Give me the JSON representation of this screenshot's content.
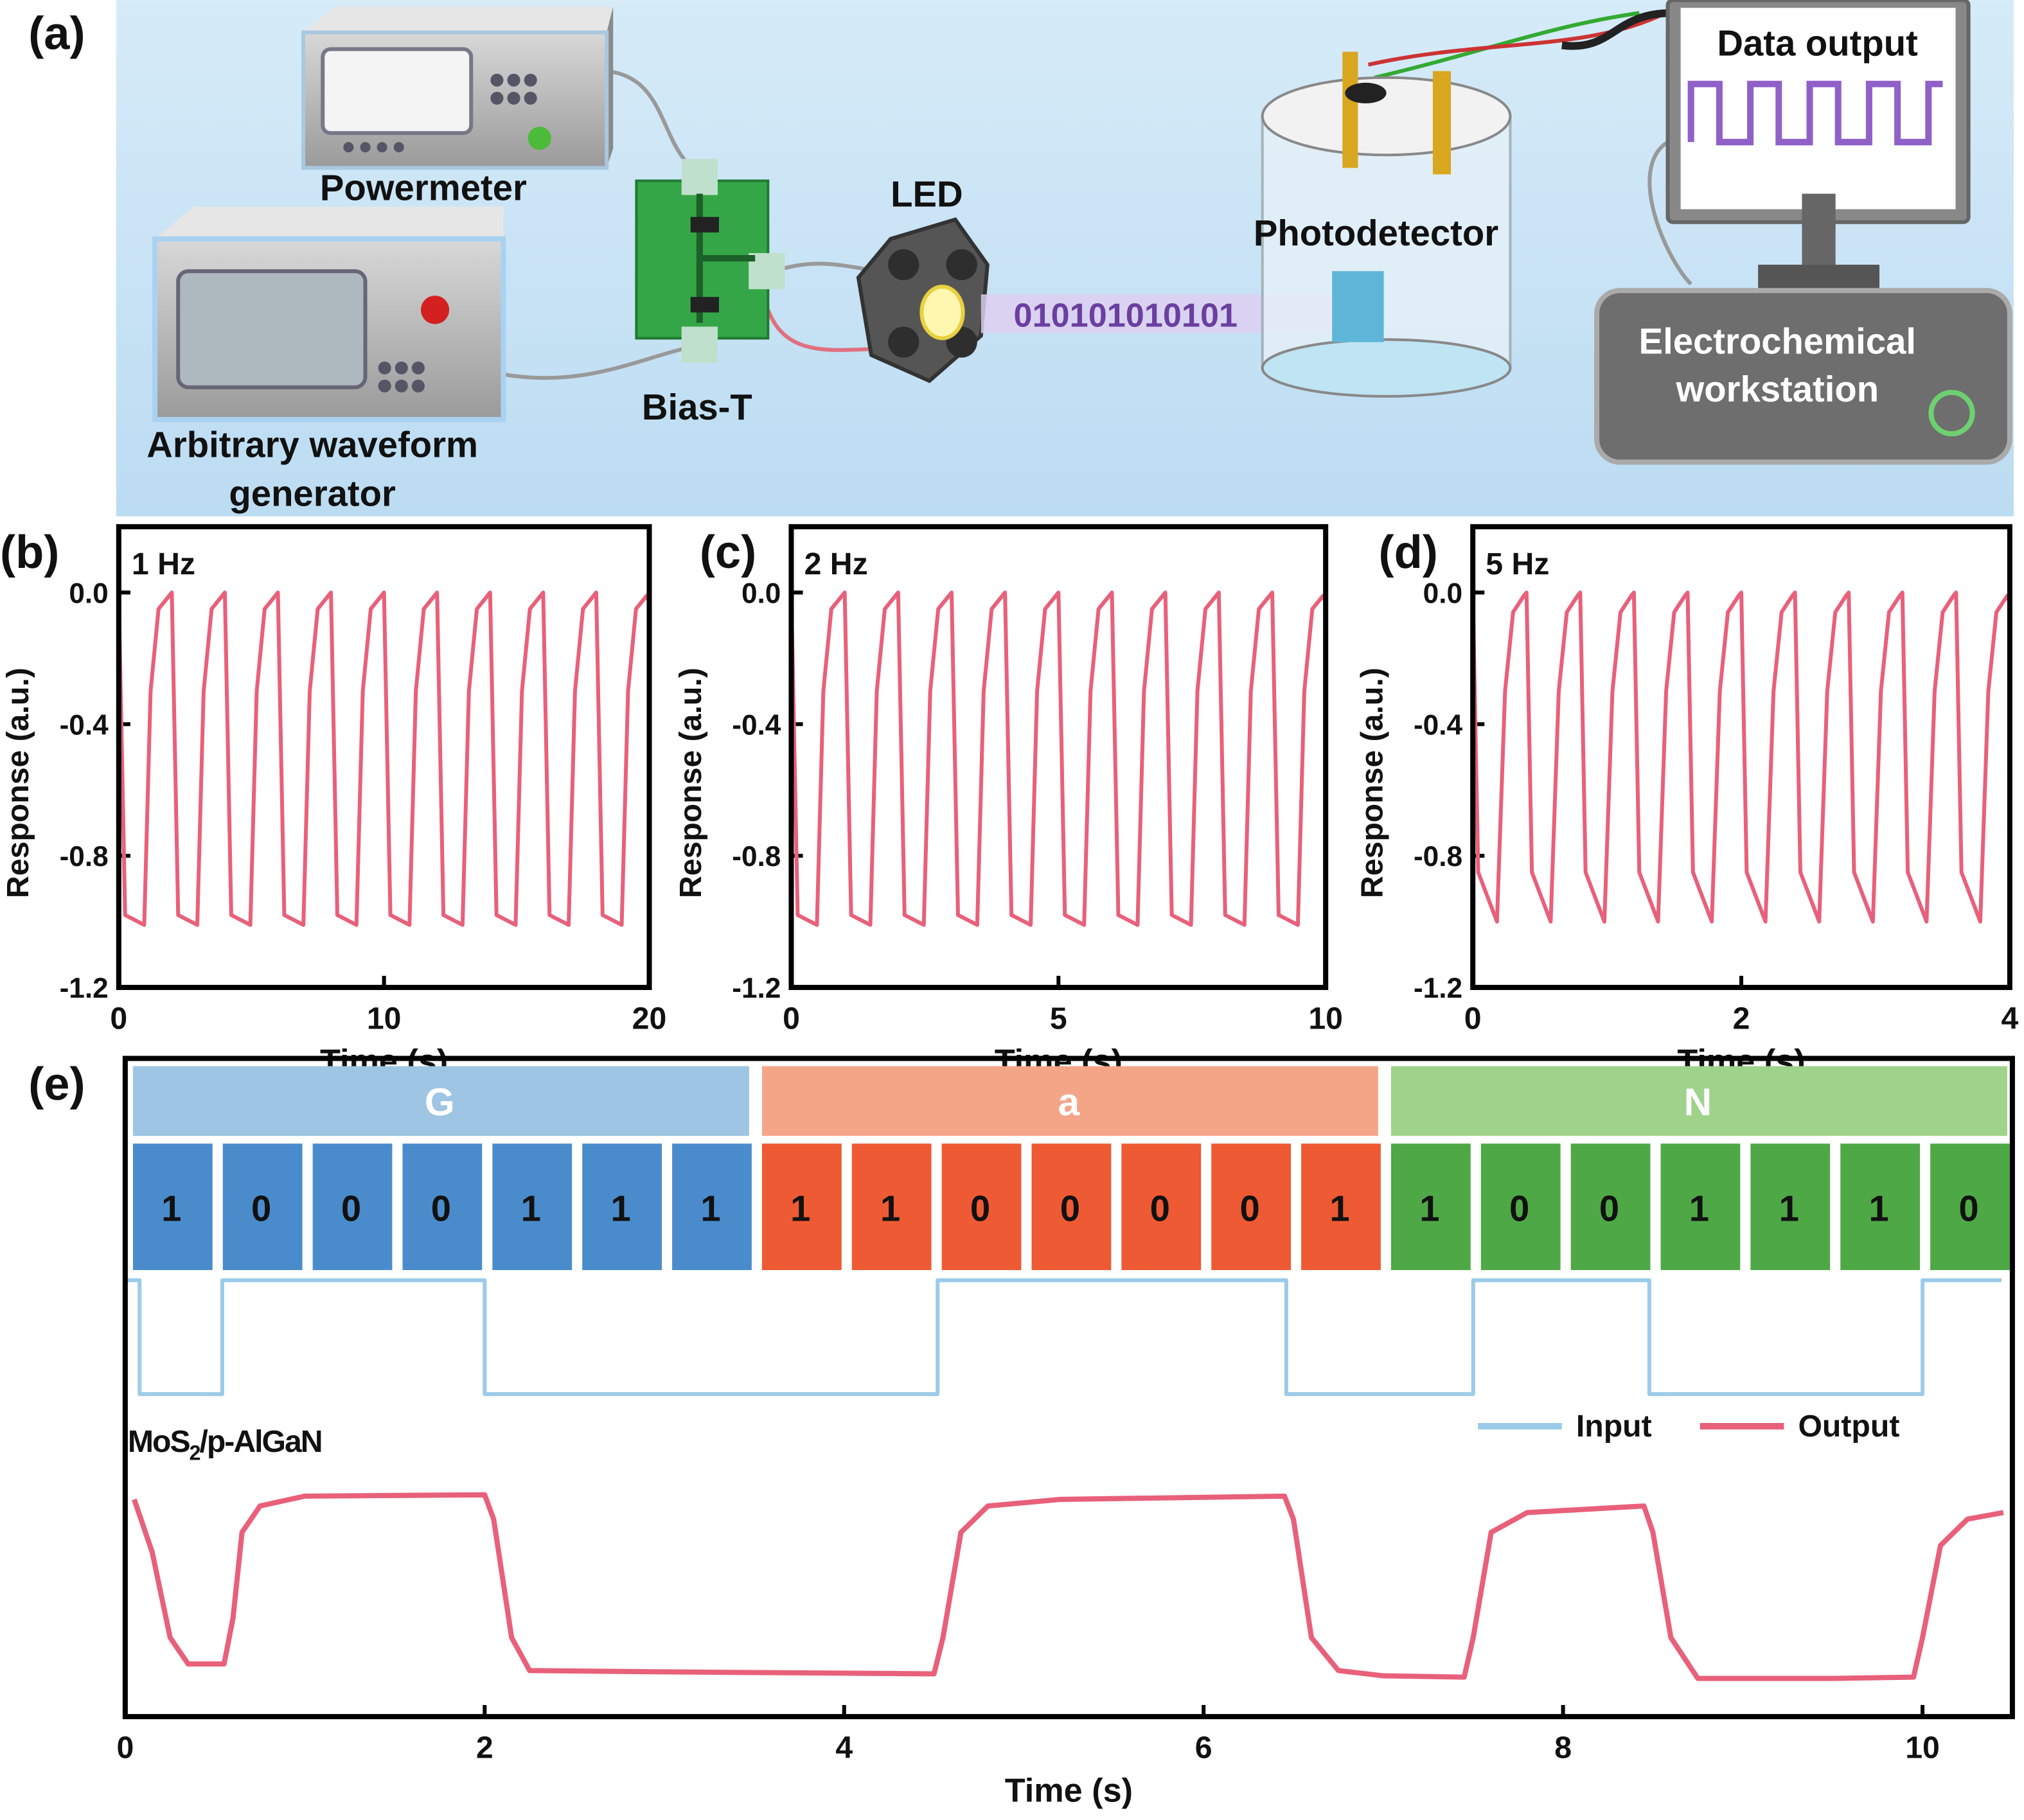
{
  "panel_labels": [
    "(a)",
    "(b)",
    "(c)",
    "(d)",
    "(e)"
  ],
  "diagram": {
    "powermeter": "Powermeter",
    "waveform_generator": [
      "Arbitrary waveform",
      "generator"
    ],
    "bias_t": "Bias-T",
    "led": "LED",
    "signal": "010101010101",
    "photodetector": "Photodetector",
    "data_output": "Data output",
    "workstation": [
      "Electrochemical",
      "workstation"
    ]
  },
  "chart_data": [
    {
      "type": "line",
      "annotation": "1 Hz",
      "xlabel": "Time (s)",
      "ylabel": "Response (a.u.)",
      "color": "#e8607a",
      "x": [
        0,
        0.24,
        0.96,
        1.2,
        1.5,
        1.9,
        2,
        2.24,
        2.96,
        3.2,
        3.5,
        3.9,
        4,
        4.24,
        4.96,
        5.2,
        5.5,
        5.9,
        6,
        6.24,
        6.96,
        7.2,
        7.5,
        7.9,
        8,
        8.24,
        8.96,
        9.2,
        9.5,
        9.9,
        10,
        10.24,
        10.96,
        11.2,
        11.5,
        11.9,
        12,
        12.24,
        12.96,
        13.2,
        13.5,
        13.9,
        14,
        14.24,
        14.96,
        15.2,
        15.5,
        15.9,
        16,
        16.24,
        16.96,
        17.2,
        17.5,
        17.9,
        18,
        18.24,
        18.96,
        19.2,
        19.5,
        19.9,
        20
      ],
      "values": [
        0,
        -0.98,
        -1.01,
        -0.3,
        -0.05,
        -0.01,
        0,
        -0.98,
        -1.01,
        -0.3,
        -0.05,
        -0.01,
        0,
        -0.98,
        -1.01,
        -0.3,
        -0.05,
        -0.01,
        0,
        -0.98,
        -1.01,
        -0.3,
        -0.05,
        -0.01,
        0,
        -0.98,
        -1.01,
        -0.3,
        -0.05,
        -0.01,
        0,
        -0.98,
        -1.01,
        -0.3,
        -0.05,
        -0.01,
        0,
        -0.98,
        -1.01,
        -0.3,
        -0.05,
        -0.01,
        0,
        -0.98,
        -1.01,
        -0.3,
        -0.05,
        -0.01,
        0,
        -0.98,
        -1.01,
        -0.3,
        -0.05,
        -0.01,
        0,
        -0.98,
        -1.01,
        -0.3,
        -0.05,
        -0.01,
        -0.03
      ],
      "xlim": [
        0,
        20
      ],
      "ylim": [
        -1.2,
        0.2
      ],
      "xticks": [
        0,
        10,
        20
      ],
      "yticks": [
        {
          "value": 0,
          "label": "0.0"
        },
        -0.4,
        -0.8,
        -1.2
      ]
    },
    {
      "type": "line",
      "annotation": "2 Hz",
      "xlabel": "Time (s)",
      "ylabel": "Response (a.u.)",
      "color": "#e8607a",
      "x": [
        0,
        0.12,
        0.48,
        0.6,
        0.75,
        0.95,
        1,
        1.12,
        1.48,
        1.6,
        1.75,
        1.95,
        2,
        2.12,
        2.48,
        2.6,
        2.75,
        2.95,
        3,
        3.12,
        3.48,
        3.6,
        3.75,
        3.95,
        4,
        4.12,
        4.48,
        4.6,
        4.75,
        4.95,
        5,
        5.12,
        5.48,
        5.6,
        5.75,
        5.95,
        6,
        6.12,
        6.48,
        6.6,
        6.75,
        6.95,
        7,
        7.12,
        7.48,
        7.6,
        7.75,
        7.95,
        8,
        8.12,
        8.48,
        8.6,
        8.75,
        8.95,
        9,
        9.12,
        9.48,
        9.6,
        9.75,
        9.95,
        10
      ],
      "values": [
        0,
        -0.98,
        -1.01,
        -0.3,
        -0.05,
        -0.01,
        0,
        -0.98,
        -1.01,
        -0.3,
        -0.05,
        -0.01,
        0,
        -0.98,
        -1.01,
        -0.3,
        -0.05,
        -0.01,
        0,
        -0.98,
        -1.01,
        -0.3,
        -0.05,
        -0.01,
        0,
        -0.98,
        -1.01,
        -0.3,
        -0.05,
        -0.01,
        0,
        -0.98,
        -1.01,
        -0.3,
        -0.05,
        -0.01,
        0,
        -0.98,
        -1.01,
        -0.3,
        -0.05,
        -0.01,
        0,
        -0.98,
        -1.01,
        -0.3,
        -0.05,
        -0.01,
        0,
        -0.98,
        -1.01,
        -0.3,
        -0.05,
        -0.01,
        0,
        -0.98,
        -1.01,
        -0.3,
        -0.05,
        -0.01,
        -0.03
      ],
      "xlim": [
        0,
        10
      ],
      "ylim": [
        -1.2,
        0.2
      ],
      "xticks": [
        0,
        5,
        10
      ],
      "yticks": [
        {
          "value": 0,
          "label": "0.0"
        },
        -0.4,
        -0.8,
        -1.2
      ]
    },
    {
      "type": "line",
      "annotation": "5 Hz",
      "xlabel": "Time (s)",
      "ylabel": "Response (a.u.)",
      "color": "#e8607a",
      "x": [
        0,
        0.04,
        0.18,
        0.24,
        0.3,
        0.38,
        0.4,
        0.44,
        0.58,
        0.64,
        0.7,
        0.78,
        0.8,
        0.84,
        0.98,
        1.04,
        1.1,
        1.18,
        1.2,
        1.24,
        1.38,
        1.44,
        1.5,
        1.58,
        1.6,
        1.64,
        1.78,
        1.84,
        1.9,
        1.98,
        2,
        2.04,
        2.18,
        2.24,
        2.3,
        2.38,
        2.4,
        2.44,
        2.58,
        2.64,
        2.7,
        2.78,
        2.8,
        2.84,
        2.98,
        3.04,
        3.1,
        3.18,
        3.2,
        3.24,
        3.38,
        3.44,
        3.5,
        3.58,
        3.6,
        3.64,
        3.78,
        3.84,
        3.9,
        3.98,
        4
      ],
      "values": [
        0,
        -0.85,
        -1.0,
        -0.3,
        -0.06,
        -0.01,
        0,
        -0.85,
        -1.0,
        -0.3,
        -0.06,
        -0.01,
        0,
        -0.85,
        -1.0,
        -0.3,
        -0.06,
        -0.01,
        0,
        -0.85,
        -1.0,
        -0.3,
        -0.06,
        -0.01,
        0,
        -0.85,
        -1.0,
        -0.3,
        -0.06,
        -0.01,
        0,
        -0.85,
        -1.0,
        -0.3,
        -0.06,
        -0.01,
        0,
        -0.85,
        -1.0,
        -0.3,
        -0.06,
        -0.01,
        0,
        -0.85,
        -1.0,
        -0.3,
        -0.06,
        -0.01,
        0,
        -0.85,
        -1.0,
        -0.3,
        -0.06,
        -0.01,
        0,
        -0.85,
        -1.0,
        -0.3,
        -0.06,
        -0.01,
        -0.03
      ],
      "xlim": [
        0,
        4
      ],
      "ylim": [
        -1.2,
        0.2
      ],
      "xticks": [
        0,
        2,
        4
      ],
      "yticks": [
        {
          "value": 0,
          "label": "0.0"
        },
        -0.4,
        -0.8,
        -1.2
      ]
    },
    {
      "type": "line",
      "xlabel": "Time (s)",
      "annotation_parts": [
        "MoS",
        "2",
        "/p-AlGaN"
      ],
      "xlim": [
        0,
        10.5
      ],
      "ylim": [
        0,
        1
      ],
      "xticks": [
        0,
        2,
        4,
        6,
        8,
        10
      ],
      "bit_groups": [
        {
          "letter": "G",
          "band_color": "#9ec5e3",
          "bit_color": "#4a8ccb",
          "bits": [
            1,
            0,
            0,
            0,
            1,
            1,
            1
          ]
        },
        {
          "letter": "a",
          "band_color": "#f5a587",
          "bit_color": "#ee5a33",
          "bits": [
            1,
            1,
            0,
            0,
            0,
            0,
            1
          ]
        },
        {
          "letter": "N",
          "band_color": "#9fd38b",
          "bit_color": "#4fa846",
          "bits": [
            1,
            0,
            0,
            1,
            1,
            1,
            0
          ]
        }
      ],
      "series": [
        {
          "name": "Input",
          "color": "#9ccbe9",
          "x": [
            0,
            0.08,
            0.08,
            0.54,
            0.54,
            2,
            2,
            4.52,
            4.52,
            6.46,
            6.46,
            7.5,
            7.5,
            8.48,
            8.48,
            10,
            10,
            10.44
          ],
          "values": [
            0.663,
            0.663,
            0.49,
            0.49,
            0.663,
            0.663,
            0.49,
            0.49,
            0.663,
            0.663,
            0.49,
            0.49,
            0.663,
            0.663,
            0.49,
            0.49,
            0.663,
            0.663
          ]
        },
        {
          "name": "Output",
          "color": "#e8607a",
          "x": [
            0.05,
            0.15,
            0.25,
            0.35,
            0.55,
            0.6,
            0.65,
            0.75,
            1.0,
            2.0,
            2.05,
            2.15,
            2.25,
            3,
            4.5,
            4.55,
            4.65,
            4.8,
            5.2,
            6.45,
            6.5,
            6.6,
            6.75,
            7.0,
            7.45,
            7.5,
            7.6,
            7.8,
            8.45,
            8.5,
            8.6,
            8.75,
            9.5,
            9.95,
            10.0,
            10.1,
            10.25,
            10.45
          ],
          "values": [
            0.33,
            0.25,
            0.12,
            0.08,
            0.08,
            0.15,
            0.28,
            0.32,
            0.335,
            0.337,
            0.3,
            0.12,
            0.07,
            0.068,
            0.065,
            0.12,
            0.28,
            0.32,
            0.33,
            0.335,
            0.3,
            0.12,
            0.07,
            0.062,
            0.06,
            0.12,
            0.28,
            0.31,
            0.32,
            0.28,
            0.12,
            0.058,
            0.058,
            0.06,
            0.12,
            0.26,
            0.3,
            0.31
          ]
        }
      ]
    }
  ]
}
